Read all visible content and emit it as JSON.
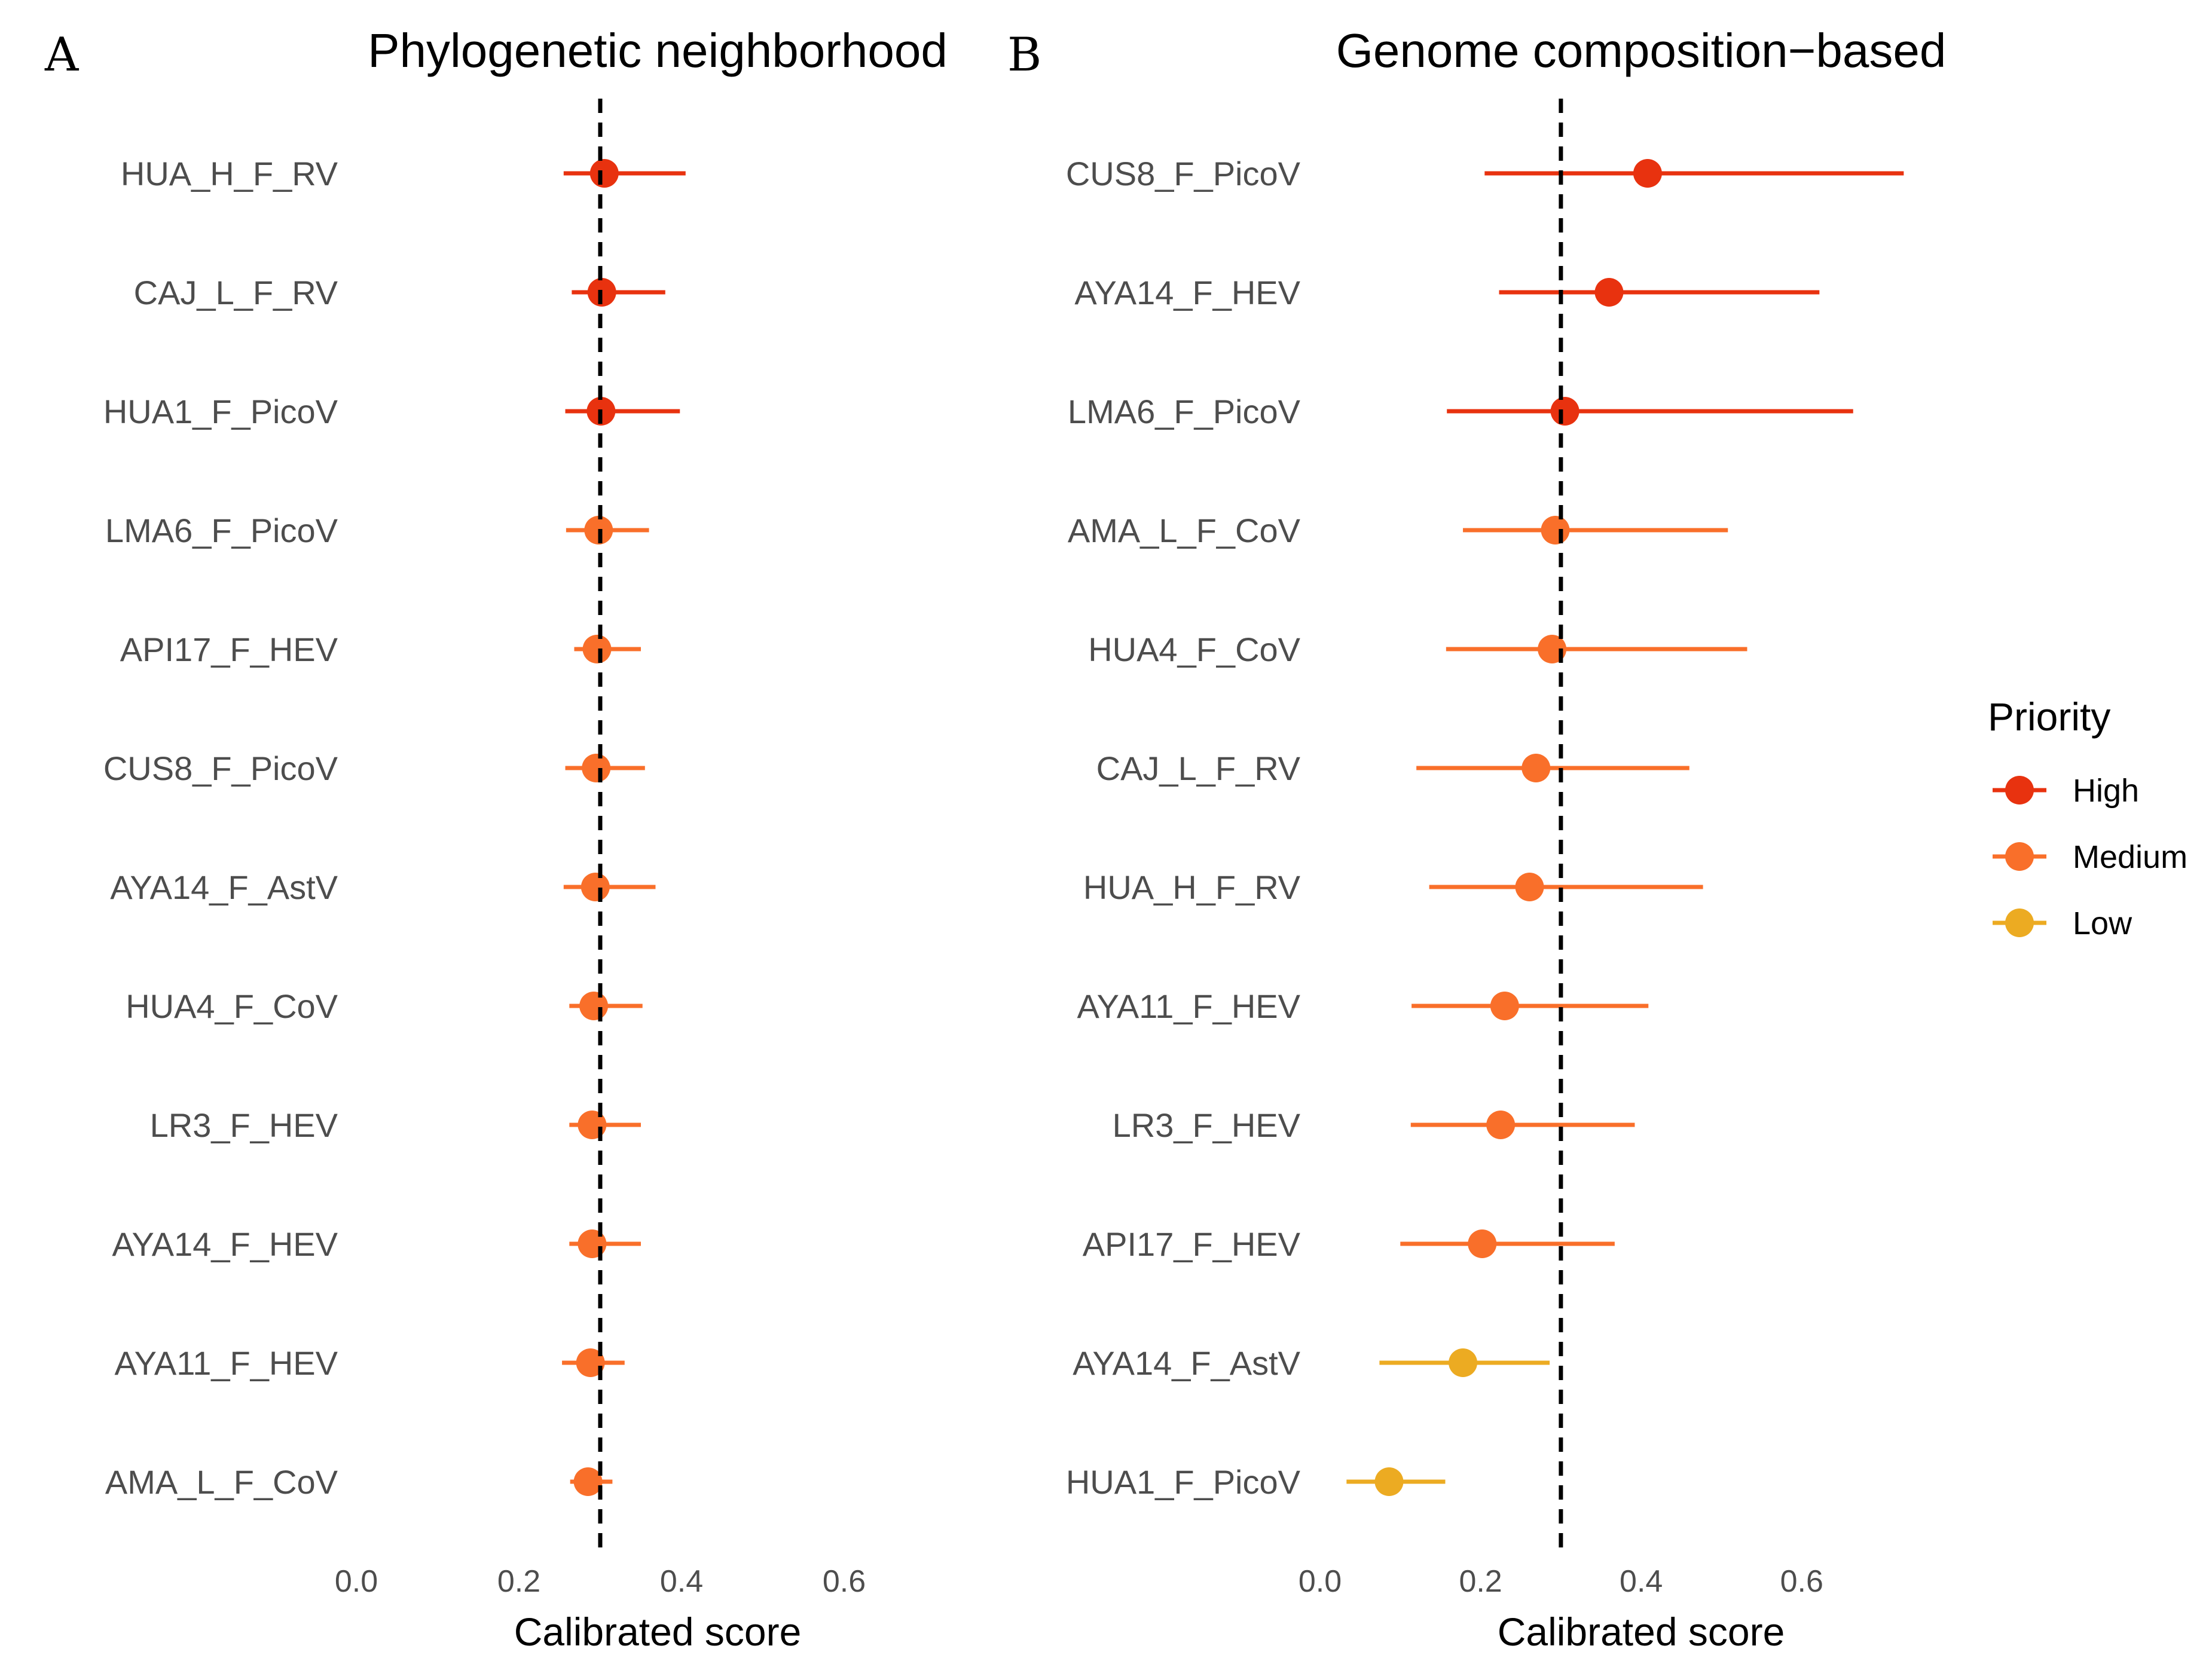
{
  "chart_data": [
    {
      "type": "forest",
      "panel_letter": "A",
      "title": "Phylogenetic neighborhood",
      "xlabel": "Calibrated score",
      "xlim": [
        0.0,
        0.6
      ],
      "x_ticks": [
        "0.0",
        "0.2",
        "0.4",
        "0.6"
      ],
      "reference_line": 0.3,
      "rows": [
        {
          "label": "HUA_H_F_RV",
          "estimate": 0.305,
          "low": 0.255,
          "high": 0.405,
          "priority": "High"
        },
        {
          "label": "CAJ_L_F_RV",
          "estimate": 0.302,
          "low": 0.265,
          "high": 0.38,
          "priority": "High"
        },
        {
          "label": "HUA1_F_PicoV",
          "estimate": 0.301,
          "low": 0.257,
          "high": 0.398,
          "priority": "High"
        },
        {
          "label": "LMA6_F_PicoV",
          "estimate": 0.298,
          "low": 0.258,
          "high": 0.36,
          "priority": "Medium"
        },
        {
          "label": "API17_F_HEV",
          "estimate": 0.296,
          "low": 0.268,
          "high": 0.35,
          "priority": "Medium"
        },
        {
          "label": "CUS8_F_PicoV",
          "estimate": 0.295,
          "low": 0.257,
          "high": 0.355,
          "priority": "Medium"
        },
        {
          "label": "AYA14_F_AstV",
          "estimate": 0.294,
          "low": 0.255,
          "high": 0.368,
          "priority": "Medium"
        },
        {
          "label": "HUA4_F_CoV",
          "estimate": 0.292,
          "low": 0.262,
          "high": 0.352,
          "priority": "Medium"
        },
        {
          "label": "LR3_F_HEV",
          "estimate": 0.29,
          "low": 0.262,
          "high": 0.35,
          "priority": "Medium"
        },
        {
          "label": "AYA14_F_HEV",
          "estimate": 0.29,
          "low": 0.262,
          "high": 0.35,
          "priority": "Medium"
        },
        {
          "label": "AYA11_F_HEV",
          "estimate": 0.288,
          "low": 0.253,
          "high": 0.33,
          "priority": "Medium"
        },
        {
          "label": "AMA_L_F_CoV",
          "estimate": 0.285,
          "low": 0.263,
          "high": 0.315,
          "priority": "Medium"
        }
      ]
    },
    {
      "type": "forest",
      "panel_letter": "B",
      "title": "Genome composition−based",
      "xlabel": "Calibrated score",
      "xlim": [
        0.0,
        0.6
      ],
      "x_ticks": [
        "0.0",
        "0.2",
        "0.4",
        "0.6"
      ],
      "reference_line": 0.3,
      "rows": [
        {
          "label": "CUS8_F_PicoV",
          "estimate": 0.408,
          "low": 0.205,
          "high": 0.727,
          "priority": "High"
        },
        {
          "label": "AYA14_F_HEV",
          "estimate": 0.36,
          "low": 0.223,
          "high": 0.622,
          "priority": "High"
        },
        {
          "label": "LMA6_F_PicoV",
          "estimate": 0.305,
          "low": 0.158,
          "high": 0.664,
          "priority": "High"
        },
        {
          "label": "AMA_L_F_CoV",
          "estimate": 0.293,
          "low": 0.178,
          "high": 0.508,
          "priority": "Medium"
        },
        {
          "label": "HUA4_F_CoV",
          "estimate": 0.289,
          "low": 0.157,
          "high": 0.532,
          "priority": "Medium"
        },
        {
          "label": "CAJ_L_F_RV",
          "estimate": 0.269,
          "low": 0.12,
          "high": 0.46,
          "priority": "Medium"
        },
        {
          "label": "HUA_H_F_RV",
          "estimate": 0.261,
          "low": 0.136,
          "high": 0.477,
          "priority": "Medium"
        },
        {
          "label": "AYA11_F_HEV",
          "estimate": 0.23,
          "low": 0.114,
          "high": 0.409,
          "priority": "Medium"
        },
        {
          "label": "LR3_F_HEV",
          "estimate": 0.225,
          "low": 0.113,
          "high": 0.392,
          "priority": "Medium"
        },
        {
          "label": "API17_F_HEV",
          "estimate": 0.202,
          "low": 0.1,
          "high": 0.367,
          "priority": "Medium"
        },
        {
          "label": "AYA14_F_AstV",
          "estimate": 0.178,
          "low": 0.074,
          "high": 0.286,
          "priority": "Low"
        },
        {
          "label": "HUA1_F_PicoV",
          "estimate": 0.086,
          "low": 0.033,
          "high": 0.156,
          "priority": "Low"
        }
      ]
    }
  ],
  "legend": {
    "title": "Priority",
    "entries": [
      {
        "label": "High",
        "color": "#e8320f"
      },
      {
        "label": "Medium",
        "color": "#f96f2a"
      },
      {
        "label": "Low",
        "color": "#ecab22"
      }
    ]
  }
}
